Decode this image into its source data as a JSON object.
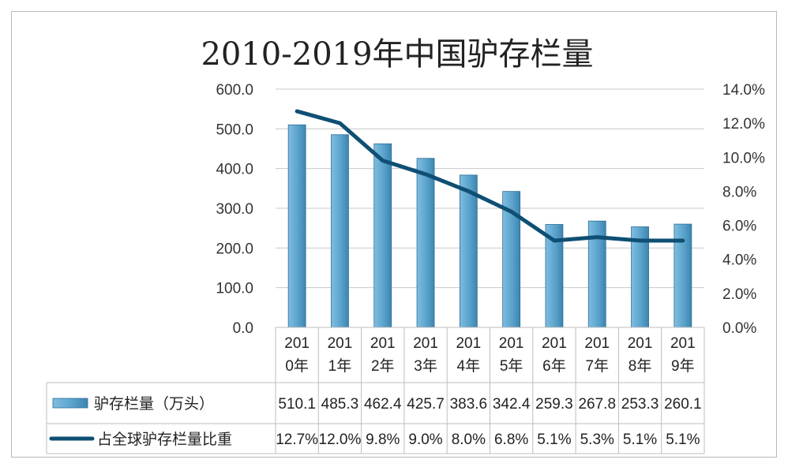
{
  "chart_data": {
    "type": "bar",
    "title": "2010-2019年中国驴存栏量",
    "categories": [
      "2010年",
      "2011年",
      "2012年",
      "2013年",
      "2014年",
      "2015年",
      "2016年",
      "2017年",
      "2018年",
      "2019年"
    ],
    "category_labels": [
      [
        "201",
        "0年"
      ],
      [
        "201",
        "1年"
      ],
      [
        "201",
        "2年"
      ],
      [
        "201",
        "3年"
      ],
      [
        "201",
        "4年"
      ],
      [
        "201",
        "5年"
      ],
      [
        "201",
        "6年"
      ],
      [
        "201",
        "7年"
      ],
      [
        "201",
        "8年"
      ],
      [
        "201",
        "9年"
      ]
    ],
    "series": [
      {
        "name": "驴存栏量（万头）",
        "type": "bar",
        "axis": "left",
        "values": [
          510.1,
          485.3,
          462.4,
          425.7,
          383.6,
          342.4,
          259.3,
          267.8,
          253.3,
          260.1
        ],
        "labels": [
          "510.1",
          "485.3",
          "462.4",
          "425.7",
          "383.6",
          "342.4",
          "259.3",
          "267.8",
          "253.3",
          "260.1"
        ],
        "color": "#5aa3cc"
      },
      {
        "name": "占全球驴存栏量比重",
        "type": "line",
        "axis": "right",
        "values": [
          12.7,
          12.0,
          9.8,
          9.0,
          8.0,
          6.8,
          5.1,
          5.3,
          5.1,
          5.1
        ],
        "labels": [
          "12.7%",
          "12.0%",
          "9.8%",
          "9.0%",
          "8.0%",
          "6.8%",
          "5.1%",
          "5.3%",
          "5.1%",
          "5.1%"
        ],
        "color": "#0f4f74"
      }
    ],
    "y_left": {
      "lim": [
        0,
        600
      ],
      "ticks": [
        "0.0",
        "100.0",
        "200.0",
        "300.0",
        "400.0",
        "500.0",
        "600.0"
      ]
    },
    "y_right": {
      "lim": [
        0,
        14
      ],
      "ticks": [
        "0.0%",
        "2.0%",
        "4.0%",
        "6.0%",
        "8.0%",
        "10.0%",
        "12.0%",
        "14.0%"
      ]
    },
    "grid": true,
    "legend": "data-table"
  }
}
